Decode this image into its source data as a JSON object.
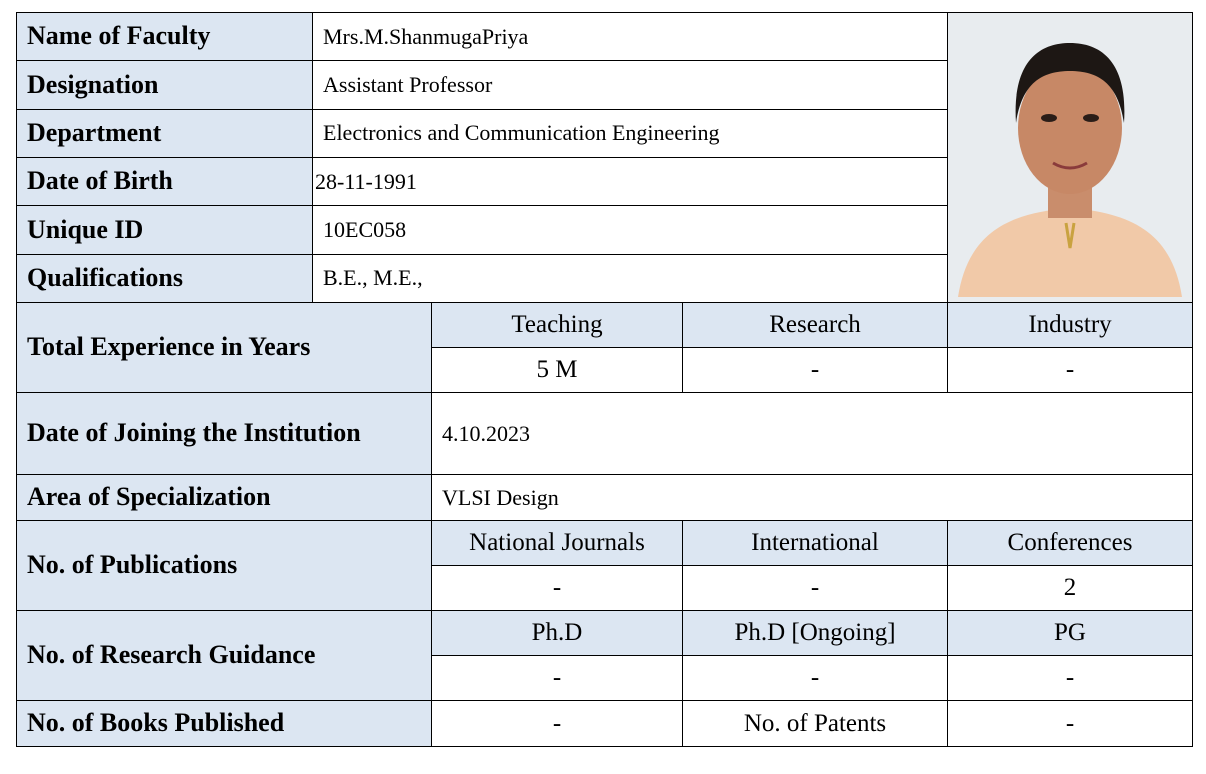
{
  "profile": {
    "rows": [
      {
        "label": "Name of Faculty",
        "value": "Mrs.M.ShanmugaPriya"
      },
      {
        "label": "Designation",
        "value": "Assistant Professor"
      },
      {
        "label": "Department",
        "value": "Electronics and Communication Engineering"
      },
      {
        "label": "Date of Birth",
        "value": "28-11-1991"
      },
      {
        "label": "Unique ID",
        "value": "10EC058"
      },
      {
        "label": "Qualifications",
        "value": "B.E., M.E.,"
      }
    ]
  },
  "experience": {
    "label": "Total Experience in Years",
    "headers": [
      "Teaching",
      "Research",
      "Industry"
    ],
    "values": [
      "5 M",
      "-",
      "-"
    ]
  },
  "joining": {
    "label": "Date of Joining the Institution",
    "value": "4.10.2023"
  },
  "specialization": {
    "label": "Area of Specialization",
    "value": "VLSI Design"
  },
  "publications": {
    "label": "No. of  Publications",
    "headers": [
      "National Journals",
      "International",
      "Conferences"
    ],
    "values": [
      "-",
      "-",
      "2"
    ]
  },
  "guidance": {
    "label": "No. of Research Guidance",
    "headers": [
      "Ph.D",
      "Ph.D [Ongoing]",
      "PG"
    ],
    "values": [
      "-",
      "-",
      "-"
    ]
  },
  "books": {
    "label": "No. of Books Published",
    "value": "-",
    "patents_label": "No. of Patents",
    "patents_value": "-"
  }
}
